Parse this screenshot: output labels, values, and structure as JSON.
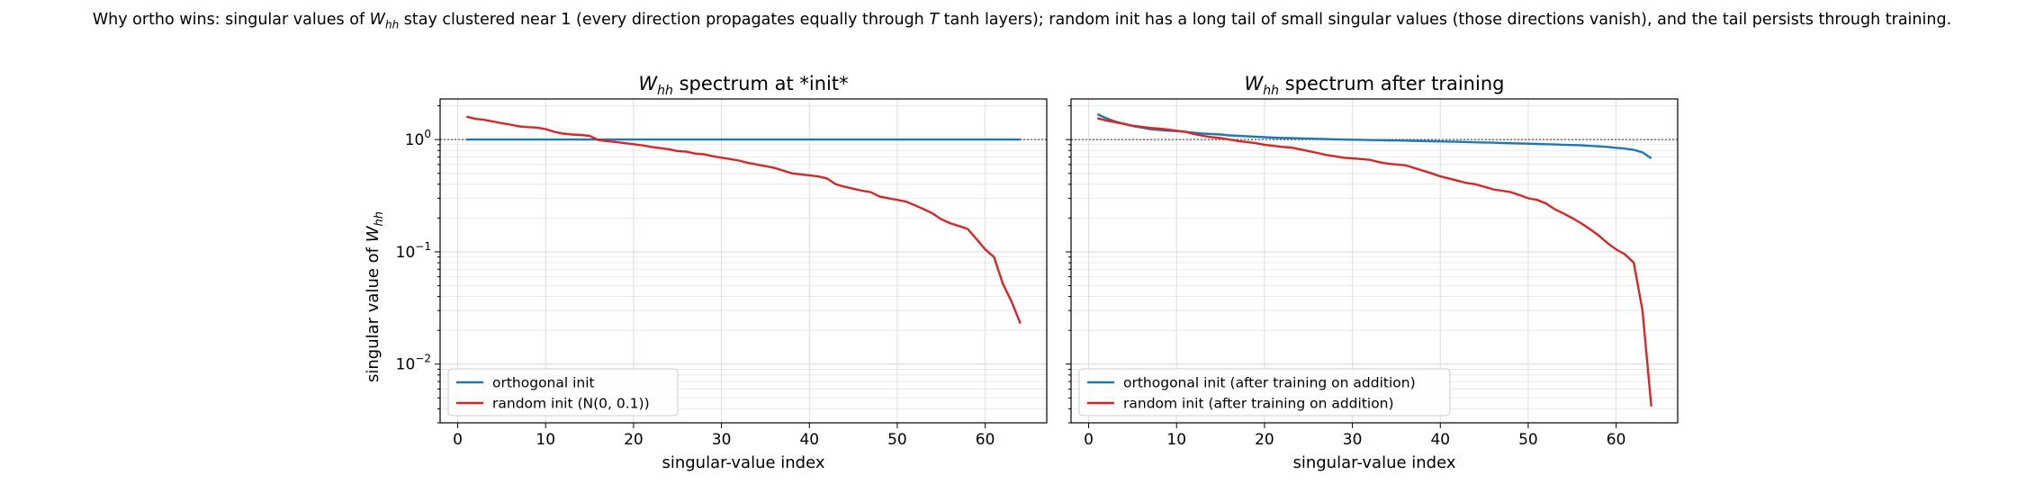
{
  "suptitle": {
    "pre": "Why ortho wins: singular values of ",
    "w": "W",
    "sub": "hh",
    "mid": " stay clustered near 1 (every direction propagates equally through ",
    "t": "T",
    "post": " tanh layers); random init has a long tail of small singular values (those directions vanish), and the tail persists through training."
  },
  "ylabel": {
    "pre": "singular value of ",
    "w": "W",
    "sub": "hh"
  },
  "colors": {
    "ortho": "#1f77b4",
    "random": "#d62728",
    "ref_line": "#555555",
    "grid": "#dddddd"
  },
  "chart_data": [
    {
      "type": "line",
      "title": {
        "w": "W",
        "sub": "hh",
        "text": " spectrum at *init*"
      },
      "xlabel": "singular-value index",
      "ylabel": "singular value of W_hh",
      "yscale": "log",
      "xlim": [
        -2,
        67
      ],
      "ylim": [
        0.003,
        2.3
      ],
      "xticks": [
        0,
        10,
        20,
        30,
        40,
        50,
        60
      ],
      "yticks": [
        {
          "value": 1,
          "base": "10",
          "exp": "0"
        },
        {
          "value": 0.1,
          "base": "10",
          "exp": "−1"
        },
        {
          "value": 0.01,
          "base": "10",
          "exp": "−2"
        }
      ],
      "reference_line": 1,
      "grid": true,
      "legend": "lower-left",
      "series": [
        {
          "name": "orthogonal init",
          "color": "#1f77b4",
          "x": [
            1,
            64
          ],
          "y": [
            1.0,
            1.0
          ]
        },
        {
          "name": "random init  (N(0, 0.1))",
          "color": "#d62728",
          "x": [
            1,
            2,
            3,
            4,
            5,
            6,
            7,
            8,
            9,
            10,
            11,
            12,
            13,
            14,
            15,
            16,
            17,
            18,
            19,
            20,
            21,
            22,
            23,
            24,
            25,
            26,
            27,
            28,
            29,
            30,
            31,
            32,
            33,
            34,
            35,
            36,
            37,
            38,
            39,
            40,
            41,
            42,
            43,
            44,
            45,
            46,
            47,
            48,
            49,
            50,
            51,
            52,
            53,
            54,
            55,
            56,
            57,
            58,
            59,
            60,
            61,
            62,
            63,
            64
          ],
          "y": [
            1.6,
            1.53,
            1.5,
            1.45,
            1.4,
            1.36,
            1.31,
            1.29,
            1.28,
            1.24,
            1.17,
            1.13,
            1.11,
            1.1,
            1.08,
            0.99,
            0.97,
            0.95,
            0.93,
            0.91,
            0.89,
            0.86,
            0.84,
            0.82,
            0.79,
            0.78,
            0.75,
            0.74,
            0.71,
            0.69,
            0.67,
            0.65,
            0.62,
            0.6,
            0.58,
            0.56,
            0.53,
            0.5,
            0.49,
            0.48,
            0.47,
            0.45,
            0.4,
            0.38,
            0.365,
            0.35,
            0.34,
            0.31,
            0.3,
            0.29,
            0.28,
            0.26,
            0.24,
            0.22,
            0.195,
            0.18,
            0.17,
            0.16,
            0.13,
            0.105,
            0.09,
            0.052,
            0.036,
            0.023
          ]
        }
      ]
    },
    {
      "type": "line",
      "title": {
        "w": "W",
        "sub": "hh",
        "text": " spectrum after training"
      },
      "xlabel": "singular-value index",
      "yscale": "log",
      "xlim": [
        -2,
        67
      ],
      "ylim": [
        0.003,
        2.3
      ],
      "xticks": [
        0,
        10,
        20,
        30,
        40,
        50,
        60
      ],
      "reference_line": 1,
      "grid": true,
      "legend": "lower-left",
      "series": [
        {
          "name": "orthogonal init  (after training on addition)",
          "color": "#1f77b4",
          "x": [
            1,
            2,
            3,
            4,
            5,
            6,
            7,
            8,
            9,
            10,
            11,
            12,
            13,
            14,
            15,
            16,
            17,
            18,
            19,
            20,
            21,
            22,
            23,
            24,
            25,
            26,
            27,
            28,
            29,
            30,
            31,
            32,
            33,
            34,
            35,
            36,
            37,
            38,
            39,
            40,
            41,
            42,
            43,
            44,
            45,
            46,
            47,
            48,
            49,
            50,
            51,
            52,
            53,
            54,
            55,
            56,
            57,
            58,
            59,
            60,
            61,
            62,
            63,
            64
          ],
          "y": [
            1.68,
            1.55,
            1.45,
            1.38,
            1.32,
            1.28,
            1.24,
            1.22,
            1.2,
            1.19,
            1.17,
            1.15,
            1.13,
            1.12,
            1.11,
            1.09,
            1.08,
            1.07,
            1.06,
            1.05,
            1.04,
            1.035,
            1.03,
            1.025,
            1.02,
            1.015,
            1.01,
            1.005,
            1.0,
            0.998,
            0.995,
            0.99,
            0.988,
            0.985,
            0.982,
            0.978,
            0.975,
            0.97,
            0.967,
            0.963,
            0.96,
            0.955,
            0.95,
            0.946,
            0.942,
            0.938,
            0.933,
            0.928,
            0.924,
            0.92,
            0.915,
            0.91,
            0.905,
            0.9,
            0.895,
            0.89,
            0.88,
            0.87,
            0.86,
            0.845,
            0.83,
            0.81,
            0.77,
            0.68
          ]
        },
        {
          "name": "random init  (after training on addition)",
          "color": "#d62728",
          "x": [
            1,
            2,
            3,
            4,
            5,
            6,
            7,
            8,
            9,
            10,
            11,
            12,
            13,
            14,
            15,
            16,
            17,
            18,
            19,
            20,
            21,
            22,
            23,
            24,
            25,
            26,
            27,
            28,
            29,
            30,
            31,
            32,
            33,
            34,
            35,
            36,
            37,
            38,
            39,
            40,
            41,
            42,
            43,
            44,
            45,
            46,
            47,
            48,
            49,
            50,
            51,
            52,
            53,
            54,
            55,
            56,
            57,
            58,
            59,
            60,
            61,
            62,
            63,
            64
          ],
          "y": [
            1.55,
            1.48,
            1.43,
            1.38,
            1.33,
            1.3,
            1.27,
            1.25,
            1.23,
            1.2,
            1.17,
            1.12,
            1.08,
            1.05,
            1.03,
            1.0,
            0.97,
            0.95,
            0.93,
            0.9,
            0.88,
            0.86,
            0.85,
            0.82,
            0.79,
            0.76,
            0.73,
            0.71,
            0.69,
            0.68,
            0.67,
            0.66,
            0.63,
            0.61,
            0.6,
            0.59,
            0.56,
            0.53,
            0.5,
            0.47,
            0.45,
            0.43,
            0.41,
            0.4,
            0.38,
            0.36,
            0.35,
            0.34,
            0.32,
            0.3,
            0.29,
            0.27,
            0.24,
            0.22,
            0.2,
            0.18,
            0.16,
            0.14,
            0.12,
            0.105,
            0.095,
            0.08,
            0.03,
            0.0042
          ]
        }
      ]
    }
  ]
}
